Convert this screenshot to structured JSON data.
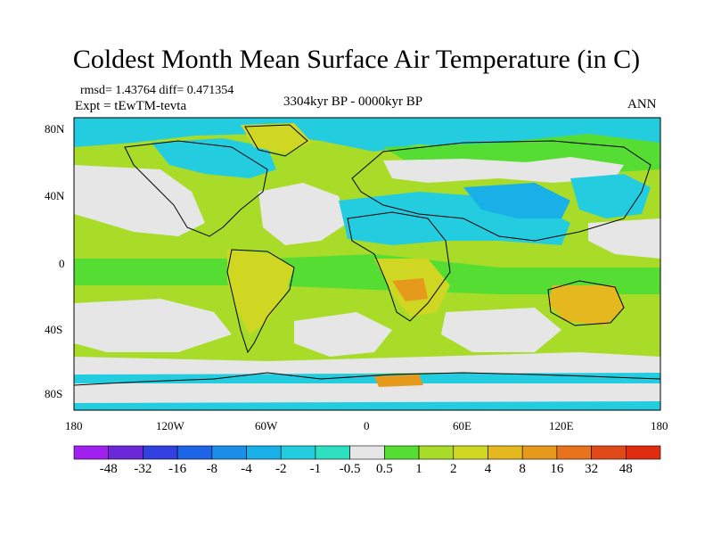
{
  "title": "Coldest Month Mean Surface Air Temperature (in C)",
  "stats": "rmsd= 1.43764 diff= 0.471354",
  "experiment": "Expt = tEwTM-tevta",
  "period": "3304kyr BP - 0000kyr BP",
  "season": "ANN",
  "map": {
    "lat_ticks": [
      "80N",
      "40N",
      "0",
      "40S",
      "80S"
    ],
    "lon_ticks": [
      "180",
      "120W",
      "60W",
      "0",
      "60E",
      "120E",
      "180"
    ]
  },
  "colorbar": {
    "labels": [
      "-48",
      "-32",
      "-16",
      "-8",
      "-4",
      "-2",
      "-1",
      "-0.5",
      "0.5",
      "1",
      "2",
      "4",
      "8",
      "16",
      "32",
      "48"
    ],
    "colors": [
      "#a020f0",
      "#6a28d8",
      "#3340e0",
      "#1e64e6",
      "#1a8ee8",
      "#18b0e6",
      "#24cce0",
      "#2ee0c0",
      "#e6e6e6",
      "#55dd33",
      "#a8dc28",
      "#cfd722",
      "#e6b81f",
      "#e69a1c",
      "#e8731c",
      "#e04a1a",
      "#e02d12"
    ]
  },
  "palette": {
    "no_change": "#e6e6e6",
    "slight_warm": "#a8dc28",
    "warm": "#55dd33",
    "warmer": "#cfd722",
    "warm_orange": "#e6b81f",
    "hot": "#e69a1c",
    "cool": "#24cce0",
    "cooler": "#18b0e6",
    "cold": "#1a8ee8",
    "coast": "#000000"
  }
}
